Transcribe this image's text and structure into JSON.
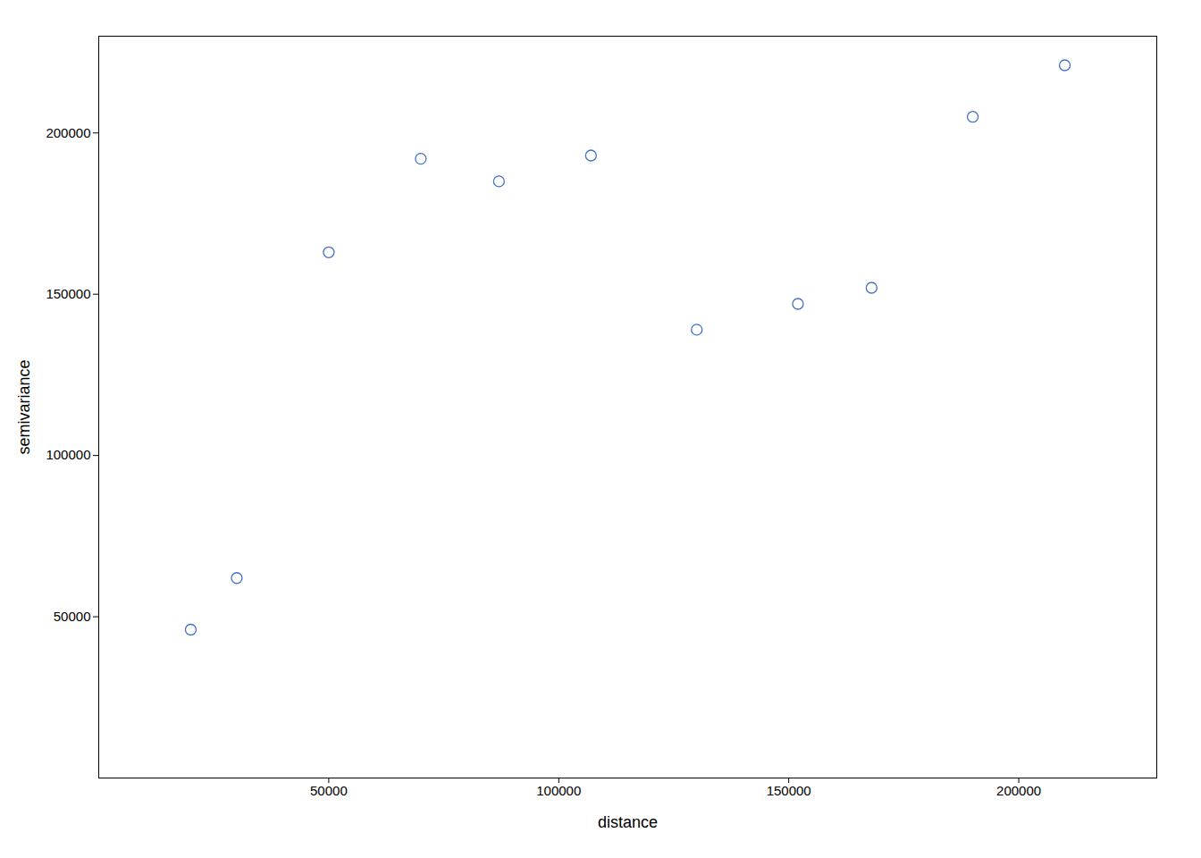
{
  "chart_data": {
    "type": "scatter",
    "x": [
      20000,
      30000,
      50000,
      70000,
      87000,
      107000,
      130000,
      152000,
      168000,
      190000,
      210000
    ],
    "y": [
      46000,
      62000,
      163000,
      192000,
      185000,
      193000,
      139000,
      147000,
      152000,
      205000,
      221000
    ],
    "xlabel": "distance",
    "ylabel": "semivariance",
    "xlim": [
      0,
      230000
    ],
    "ylim": [
      0,
      230000
    ],
    "xticks": [
      50000,
      100000,
      150000,
      200000
    ],
    "yticks": [
      50000,
      100000,
      150000,
      200000
    ],
    "color": "#4472C4"
  }
}
